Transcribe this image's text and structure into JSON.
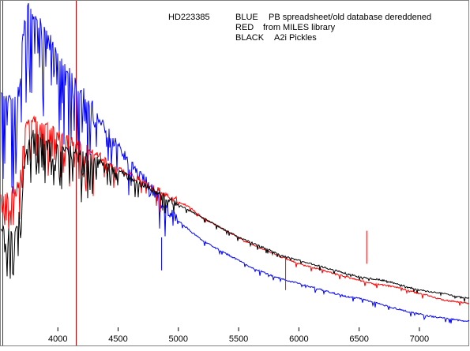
{
  "legend": {
    "object": "HD223385",
    "lines": [
      {
        "color_word": "BLUE",
        "description": "PB spreadsheet/old database dereddened"
      },
      {
        "color_word": "RED",
        "description": "from MILES library"
      },
      {
        "color_word": "BLACK",
        "description": "A2i   Pickles"
      }
    ]
  },
  "chart_data": {
    "type": "line",
    "title": "",
    "xlabel": "",
    "ylabel": "",
    "xlim": [
      3520,
      7420
    ],
    "ylim": [
      0,
      1.0
    ],
    "x_ticks": [
      4000,
      4500,
      5000,
      5500,
      6000,
      6500,
      7000
    ],
    "x_tick_labels": [
      "4000",
      "4500",
      "5000",
      "5500",
      "6000",
      "6500",
      "7000"
    ],
    "grid": false,
    "legend_position": "top-right",
    "vertical_markers": [
      {
        "x": 3540,
        "color": "#cc0000"
      },
      {
        "x": 4150,
        "color": "#cc0000"
      }
    ],
    "series": [
      {
        "name": "BLUE",
        "color": "#0000ff",
        "x": [
          3520,
          3560,
          3600,
          3640,
          3680,
          3700,
          3730,
          3760,
          3800,
          3850,
          3900,
          3950,
          4000,
          4050,
          4100,
          4150,
          4200,
          4250,
          4300,
          4350,
          4400,
          4450,
          4500,
          4550,
          4600,
          4650,
          4700,
          4750,
          4800,
          4850,
          4900,
          4950,
          5000,
          5100,
          5200,
          5300,
          5400,
          5500,
          5600,
          5700,
          5800,
          5900,
          6000,
          6100,
          6200,
          6300,
          6400,
          6500,
          6600,
          6700,
          6800,
          6900,
          7000,
          7100,
          7200,
          7300,
          7420
        ],
        "values": [
          0.72,
          0.71,
          0.7,
          0.69,
          0.73,
          0.86,
          0.95,
          0.99,
          0.94,
          0.93,
          0.9,
          0.87,
          0.83,
          0.79,
          0.78,
          0.75,
          0.72,
          0.7,
          0.67,
          0.64,
          0.61,
          0.58,
          0.56,
          0.53,
          0.5,
          0.48,
          0.46,
          0.44,
          0.42,
          0.39,
          0.37,
          0.35,
          0.33,
          0.3,
          0.27,
          0.25,
          0.23,
          0.21,
          0.19,
          0.175,
          0.16,
          0.15,
          0.14,
          0.13,
          0.12,
          0.11,
          0.1,
          0.095,
          0.085,
          0.075,
          0.065,
          0.055,
          0.048,
          0.04,
          0.035,
          0.03,
          0.025
        ]
      },
      {
        "name": "RED",
        "color": "#ff0000",
        "x": [
          3520,
          3560,
          3600,
          3640,
          3680,
          3700,
          3720,
          3750,
          3800,
          3850,
          3900,
          3950,
          4000,
          4050,
          4100,
          4150,
          4200,
          4250,
          4300,
          4350,
          4400,
          4450,
          4500,
          4550,
          4600,
          4650,
          4700,
          4750,
          4800,
          4850,
          4900,
          4950,
          5000,
          5100,
          5200,
          5300,
          5400,
          5500,
          5600,
          5700,
          5800,
          5900,
          6000,
          6100,
          6200,
          6300,
          6400,
          6500,
          6600,
          6700,
          6800,
          6900,
          7000,
          7100,
          7200,
          7300,
          7420
        ],
        "values": [
          0.42,
          0.41,
          0.42,
          0.43,
          0.45,
          0.53,
          0.6,
          0.63,
          0.64,
          0.63,
          0.62,
          0.61,
          0.6,
          0.59,
          0.58,
          0.57,
          0.56,
          0.55,
          0.54,
          0.53,
          0.51,
          0.5,
          0.49,
          0.48,
          0.47,
          0.46,
          0.45,
          0.44,
          0.43,
          0.42,
          0.41,
          0.4,
          0.39,
          0.37,
          0.34,
          0.32,
          0.3,
          0.28,
          0.26,
          0.245,
          0.23,
          0.215,
          0.2,
          0.19,
          0.18,
          0.17,
          0.16,
          0.15,
          0.14,
          0.135,
          0.13,
          0.12,
          0.11,
          0.1,
          0.09,
          0.085,
          0.08
        ]
      },
      {
        "name": "BLACK",
        "color": "#000000",
        "x": [
          3520,
          3560,
          3600,
          3640,
          3660,
          3680,
          3700,
          3720,
          3750,
          3800,
          3850,
          3900,
          3950,
          4000,
          4050,
          4100,
          4150,
          4200,
          4250,
          4300,
          4350,
          4400,
          4450,
          4500,
          4550,
          4600,
          4650,
          4700,
          4750,
          4800,
          4850,
          4900,
          4950,
          5000,
          5100,
          5200,
          5300,
          5400,
          5500,
          5600,
          5700,
          5800,
          5900,
          6000,
          6100,
          6200,
          6300,
          6400,
          6500,
          6600,
          6700,
          6800,
          6900,
          7000,
          7100,
          7200,
          7300,
          7420
        ],
        "values": [
          0.3,
          0.31,
          0.3,
          0.3,
          0.32,
          0.36,
          0.42,
          0.5,
          0.56,
          0.6,
          0.59,
          0.58,
          0.57,
          0.56,
          0.55,
          0.55,
          0.54,
          0.54,
          0.53,
          0.52,
          0.51,
          0.5,
          0.49,
          0.48,
          0.47,
          0.46,
          0.45,
          0.44,
          0.43,
          0.42,
          0.41,
          0.4,
          0.39,
          0.38,
          0.36,
          0.34,
          0.32,
          0.3,
          0.28,
          0.265,
          0.25,
          0.235,
          0.22,
          0.21,
          0.2,
          0.19,
          0.18,
          0.17,
          0.16,
          0.155,
          0.15,
          0.14,
          0.13,
          0.12,
          0.115,
          0.11,
          0.1,
          0.095
        ]
      }
    ]
  }
}
